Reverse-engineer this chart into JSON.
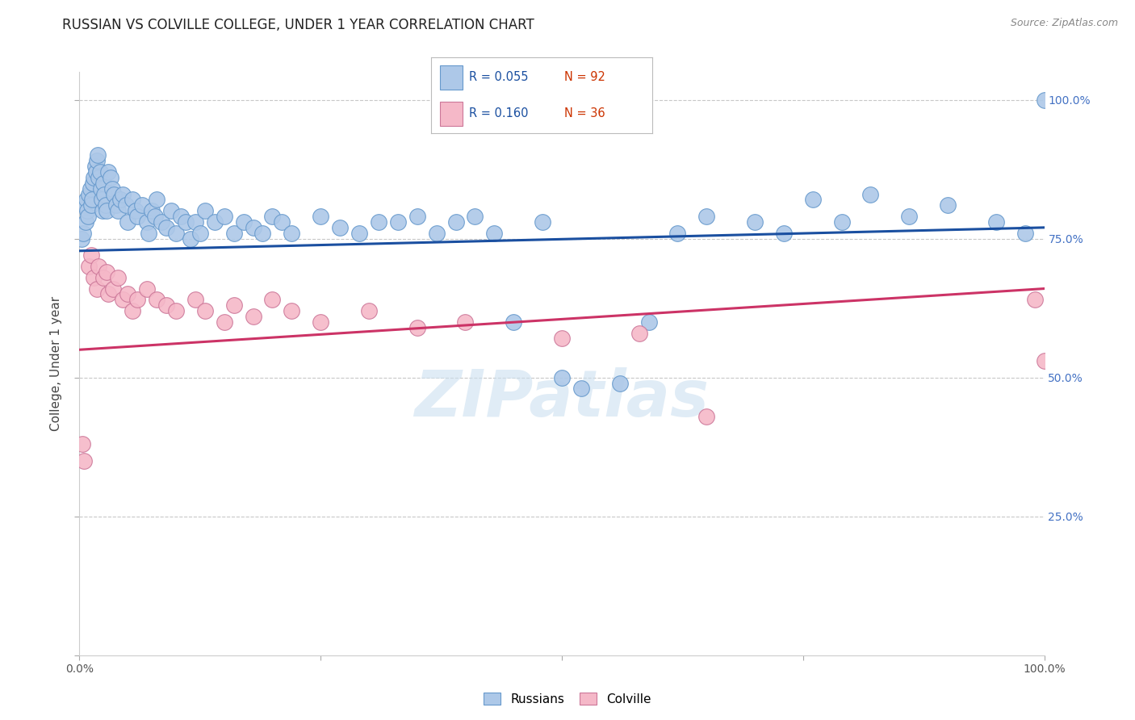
{
  "title": "RUSSIAN VS COLVILLE COLLEGE, UNDER 1 YEAR CORRELATION CHART",
  "source": "Source: ZipAtlas.com",
  "ylabel": "College, Under 1 year",
  "legend_blue_label": "Russians",
  "legend_pink_label": "Colville",
  "watermark": "ZIPatlas",
  "blue_color": "#adc8e8",
  "blue_edge_color": "#6699cc",
  "blue_line_color": "#1a4fa0",
  "pink_color": "#f5b8c8",
  "pink_edge_color": "#cc7799",
  "pink_line_color": "#cc3366",
  "background_color": "#ffffff",
  "grid_color": "#c8c8c8",
  "right_tick_color": "#4472c4",
  "blue_scatter_x": [
    0.002,
    0.004,
    0.005,
    0.006,
    0.007,
    0.008,
    0.009,
    0.01,
    0.011,
    0.012,
    0.013,
    0.014,
    0.015,
    0.016,
    0.017,
    0.018,
    0.019,
    0.02,
    0.021,
    0.022,
    0.023,
    0.024,
    0.025,
    0.026,
    0.027,
    0.028,
    0.03,
    0.032,
    0.034,
    0.036,
    0.038,
    0.04,
    0.042,
    0.045,
    0.048,
    0.05,
    0.055,
    0.058,
    0.06,
    0.065,
    0.07,
    0.072,
    0.075,
    0.078,
    0.08,
    0.085,
    0.09,
    0.095,
    0.1,
    0.105,
    0.11,
    0.115,
    0.12,
    0.125,
    0.13,
    0.14,
    0.15,
    0.16,
    0.17,
    0.18,
    0.19,
    0.2,
    0.21,
    0.22,
    0.25,
    0.27,
    0.29,
    0.31,
    0.33,
    0.35,
    0.37,
    0.39,
    0.41,
    0.43,
    0.45,
    0.48,
    0.5,
    0.52,
    0.56,
    0.59,
    0.62,
    0.65,
    0.7,
    0.73,
    0.76,
    0.79,
    0.82,
    0.86,
    0.9,
    0.95,
    0.98,
    1.0
  ],
  "blue_scatter_y": [
    0.75,
    0.76,
    0.81,
    0.78,
    0.82,
    0.8,
    0.79,
    0.83,
    0.84,
    0.81,
    0.82,
    0.85,
    0.86,
    0.88,
    0.87,
    0.89,
    0.9,
    0.86,
    0.87,
    0.84,
    0.82,
    0.8,
    0.85,
    0.83,
    0.81,
    0.8,
    0.87,
    0.86,
    0.84,
    0.83,
    0.81,
    0.8,
    0.82,
    0.83,
    0.81,
    0.78,
    0.82,
    0.8,
    0.79,
    0.81,
    0.78,
    0.76,
    0.8,
    0.79,
    0.82,
    0.78,
    0.77,
    0.8,
    0.76,
    0.79,
    0.78,
    0.75,
    0.78,
    0.76,
    0.8,
    0.78,
    0.79,
    0.76,
    0.78,
    0.77,
    0.76,
    0.79,
    0.78,
    0.76,
    0.79,
    0.77,
    0.76,
    0.78,
    0.78,
    0.79,
    0.76,
    0.78,
    0.79,
    0.76,
    0.6,
    0.78,
    0.5,
    0.48,
    0.49,
    0.6,
    0.76,
    0.79,
    0.78,
    0.76,
    0.82,
    0.78,
    0.83,
    0.79,
    0.81,
    0.78,
    0.76,
    1.0
  ],
  "pink_scatter_x": [
    0.003,
    0.005,
    0.01,
    0.012,
    0.015,
    0.018,
    0.02,
    0.025,
    0.028,
    0.03,
    0.035,
    0.04,
    0.045,
    0.05,
    0.055,
    0.06,
    0.07,
    0.08,
    0.09,
    0.1,
    0.12,
    0.13,
    0.15,
    0.16,
    0.18,
    0.2,
    0.22,
    0.25,
    0.3,
    0.35,
    0.4,
    0.5,
    0.58,
    0.65,
    0.99,
    1.0
  ],
  "pink_scatter_y": [
    0.38,
    0.35,
    0.7,
    0.72,
    0.68,
    0.66,
    0.7,
    0.68,
    0.69,
    0.65,
    0.66,
    0.68,
    0.64,
    0.65,
    0.62,
    0.64,
    0.66,
    0.64,
    0.63,
    0.62,
    0.64,
    0.62,
    0.6,
    0.63,
    0.61,
    0.64,
    0.62,
    0.6,
    0.62,
    0.59,
    0.6,
    0.57,
    0.58,
    0.43,
    0.64,
    0.53
  ],
  "blue_line_x": [
    0.0,
    1.0
  ],
  "blue_line_y": [
    0.728,
    0.77
  ],
  "pink_line_x": [
    0.0,
    1.0
  ],
  "pink_line_y": [
    0.55,
    0.66
  ],
  "xlim": [
    0.0,
    1.0
  ],
  "ylim": [
    0.0,
    1.05
  ],
  "ytick_positions": [
    0.25,
    0.5,
    0.75,
    1.0
  ],
  "ytick_labels": [
    "25.0%",
    "50.0%",
    "75.0%",
    "100.0%"
  ]
}
